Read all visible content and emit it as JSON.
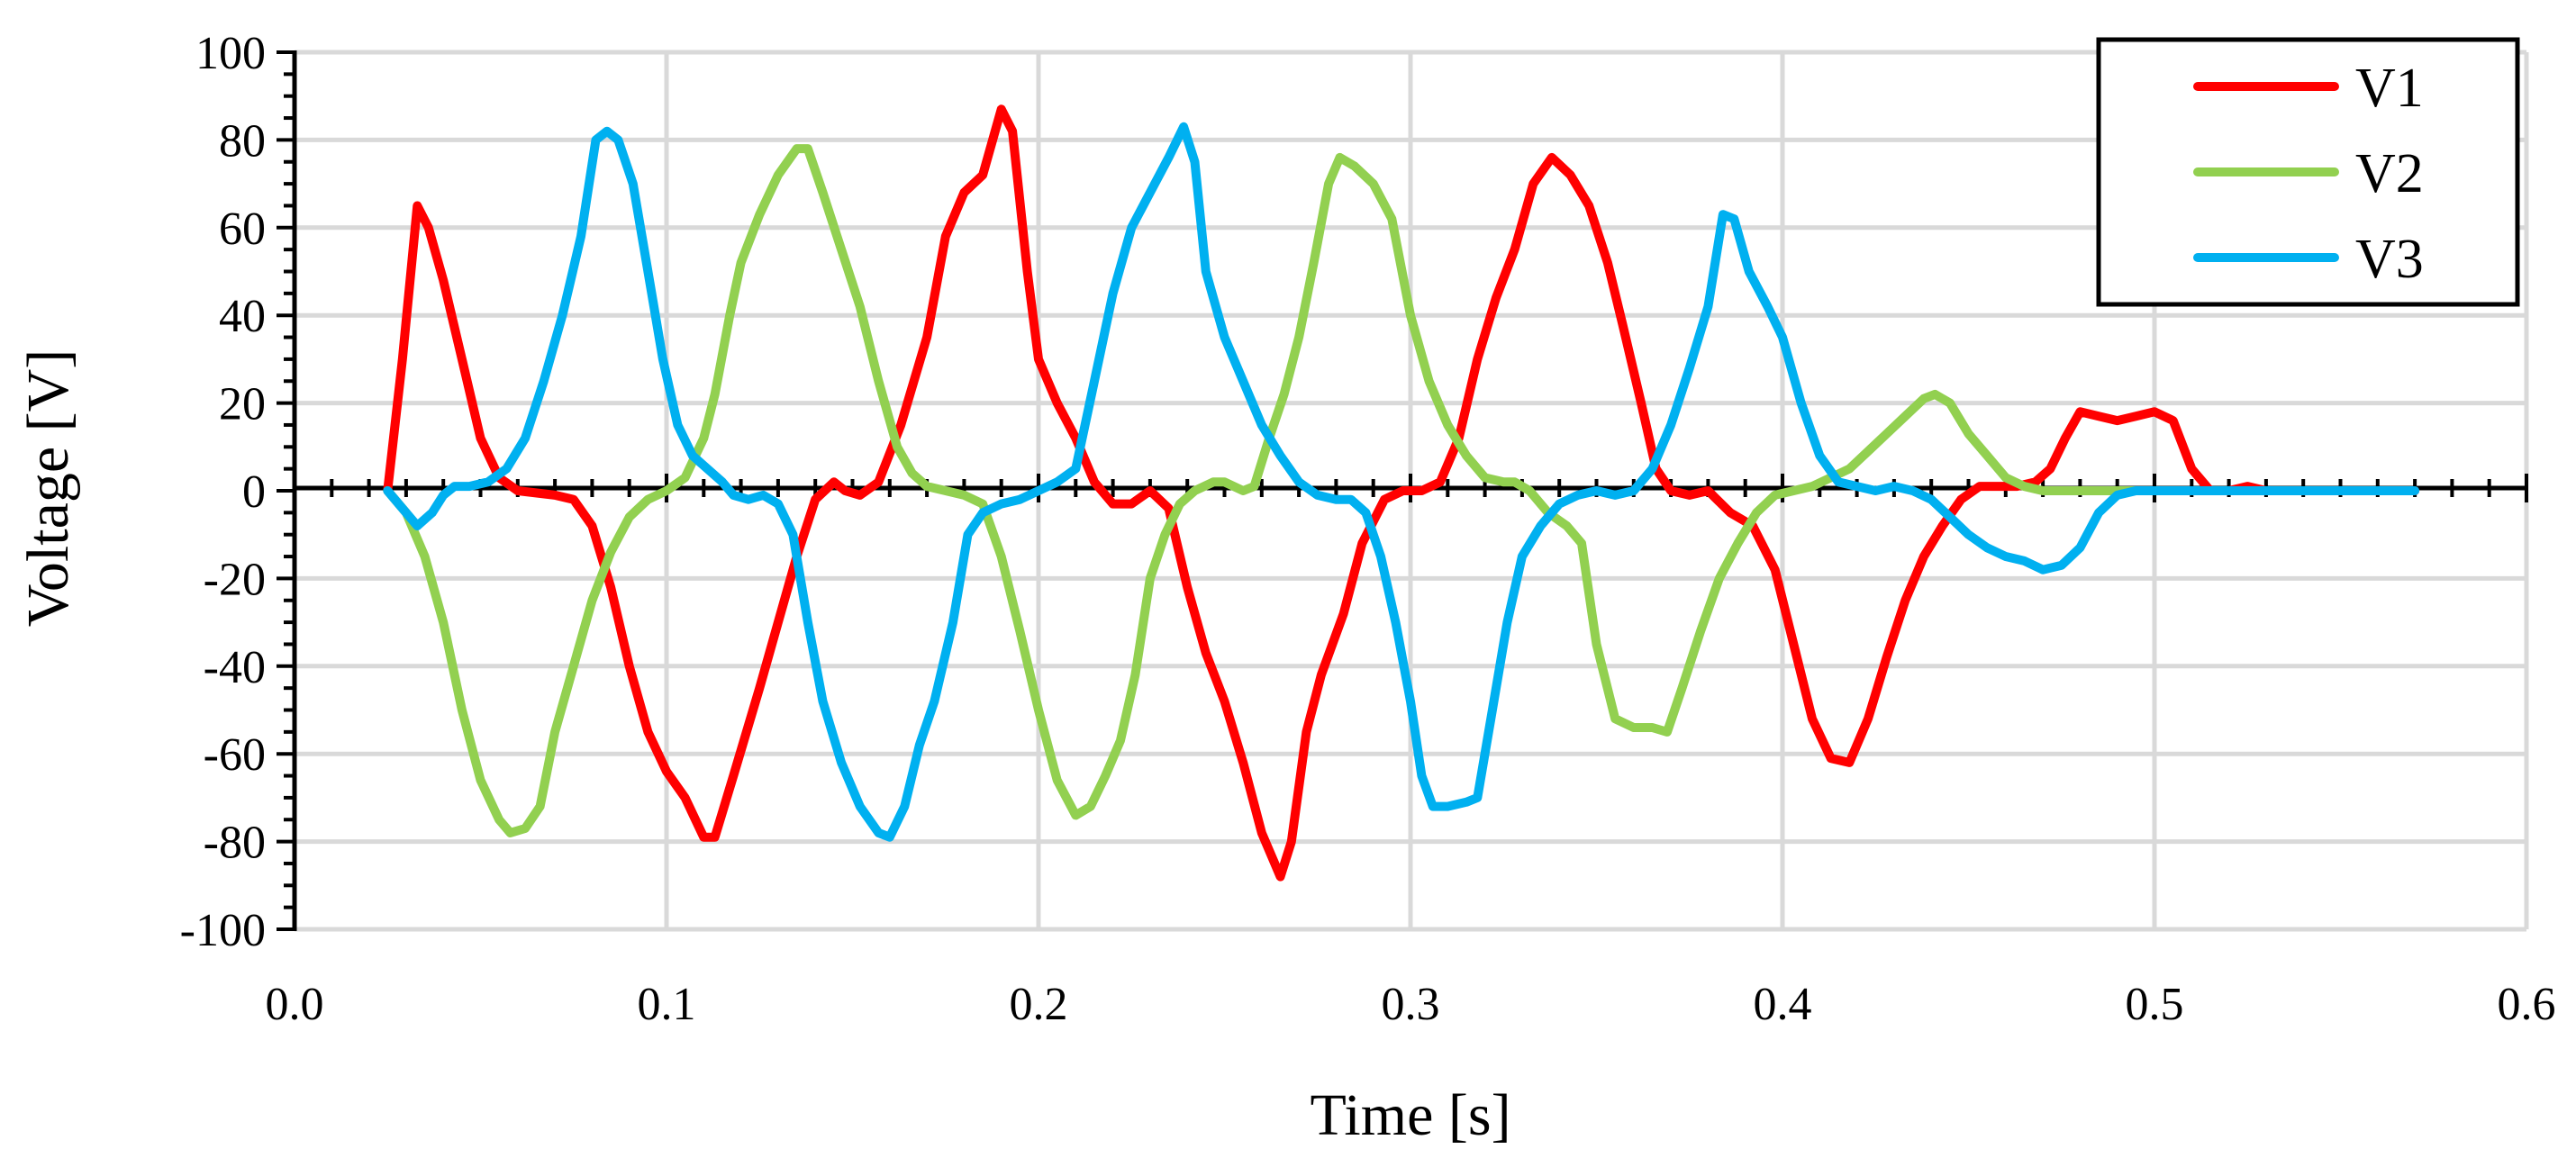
{
  "chart_data": {
    "type": "line",
    "title": "",
    "xlabel": "Time [s]",
    "ylabel": "Voltage [V]",
    "xlim": [
      0.0,
      0.6
    ],
    "ylim": [
      -100,
      100
    ],
    "x_ticks": [
      0.0,
      0.1,
      0.2,
      0.3,
      0.4,
      0.5,
      0.6
    ],
    "x_tick_labels": [
      "0.0",
      "0.1",
      "0.2",
      "0.3",
      "0.4",
      "0.5",
      "0.6"
    ],
    "y_ticks": [
      100,
      80,
      60,
      40,
      20,
      0,
      -20,
      -40,
      -60,
      -80,
      -100
    ],
    "y_tick_labels": [
      "100",
      "80",
      "60",
      "40",
      "20",
      "0",
      "-20",
      "-40",
      "-60",
      "-80",
      "-100"
    ],
    "grid": true,
    "legend_position": "top-right",
    "series": [
      {
        "name": "V1",
        "color": "#ff0000",
        "points": [
          [
            0.025,
            0
          ],
          [
            0.029,
            30
          ],
          [
            0.033,
            65
          ],
          [
            0.036,
            60
          ],
          [
            0.04,
            48
          ],
          [
            0.045,
            30
          ],
          [
            0.05,
            12
          ],
          [
            0.055,
            3
          ],
          [
            0.06,
            0
          ],
          [
            0.07,
            -1
          ],
          [
            0.075,
            -2
          ],
          [
            0.08,
            -8
          ],
          [
            0.085,
            -22
          ],
          [
            0.09,
            -40
          ],
          [
            0.095,
            -55
          ],
          [
            0.1,
            -64
          ],
          [
            0.105,
            -70
          ],
          [
            0.11,
            -79
          ],
          [
            0.113,
            -79
          ],
          [
            0.118,
            -65
          ],
          [
            0.125,
            -45
          ],
          [
            0.13,
            -30
          ],
          [
            0.135,
            -15
          ],
          [
            0.14,
            -2
          ],
          [
            0.145,
            2
          ],
          [
            0.148,
            0
          ],
          [
            0.152,
            -1
          ],
          [
            0.157,
            2
          ],
          [
            0.163,
            15
          ],
          [
            0.17,
            35
          ],
          [
            0.175,
            58
          ],
          [
            0.18,
            68
          ],
          [
            0.185,
            72
          ],
          [
            0.19,
            87
          ],
          [
            0.193,
            82
          ],
          [
            0.197,
            50
          ],
          [
            0.2,
            30
          ],
          [
            0.205,
            20
          ],
          [
            0.21,
            12
          ],
          [
            0.215,
            2
          ],
          [
            0.22,
            -3
          ],
          [
            0.225,
            -3
          ],
          [
            0.23,
            0
          ],
          [
            0.235,
            -4
          ],
          [
            0.24,
            -22
          ],
          [
            0.245,
            -37
          ],
          [
            0.25,
            -48
          ],
          [
            0.255,
            -62
          ],
          [
            0.26,
            -78
          ],
          [
            0.265,
            -88
          ],
          [
            0.268,
            -80
          ],
          [
            0.272,
            -55
          ],
          [
            0.276,
            -42
          ],
          [
            0.282,
            -28
          ],
          [
            0.287,
            -12
          ],
          [
            0.293,
            -2
          ],
          [
            0.298,
            0
          ],
          [
            0.303,
            0
          ],
          [
            0.308,
            2
          ],
          [
            0.313,
            12
          ],
          [
            0.318,
            30
          ],
          [
            0.323,
            44
          ],
          [
            0.328,
            55
          ],
          [
            0.333,
            70
          ],
          [
            0.338,
            76
          ],
          [
            0.343,
            72
          ],
          [
            0.348,
            65
          ],
          [
            0.353,
            52
          ],
          [
            0.357,
            38
          ],
          [
            0.362,
            20
          ],
          [
            0.366,
            5
          ],
          [
            0.37,
            0
          ],
          [
            0.375,
            -1
          ],
          [
            0.38,
            0
          ],
          [
            0.386,
            -5
          ],
          [
            0.392,
            -8
          ],
          [
            0.398,
            -18
          ],
          [
            0.403,
            -35
          ],
          [
            0.408,
            -52
          ],
          [
            0.413,
            -61
          ],
          [
            0.418,
            -62
          ],
          [
            0.423,
            -52
          ],
          [
            0.428,
            -38
          ],
          [
            0.433,
            -25
          ],
          [
            0.438,
            -15
          ],
          [
            0.443,
            -8
          ],
          [
            0.448,
            -2
          ],
          [
            0.453,
            1
          ],
          [
            0.458,
            1
          ],
          [
            0.463,
            1
          ],
          [
            0.468,
            2
          ],
          [
            0.472,
            5
          ],
          [
            0.476,
            12
          ],
          [
            0.48,
            18
          ],
          [
            0.485,
            17
          ],
          [
            0.49,
            16
          ],
          [
            0.495,
            17
          ],
          [
            0.5,
            18
          ],
          [
            0.505,
            16
          ],
          [
            0.51,
            5
          ],
          [
            0.515,
            0
          ],
          [
            0.52,
            0
          ],
          [
            0.525,
            1
          ],
          [
            0.53,
            0
          ],
          [
            0.57,
            0
          ]
        ]
      },
      {
        "name": "V2",
        "color": "#92d050",
        "points": [
          [
            0.025,
            0
          ],
          [
            0.03,
            -5
          ],
          [
            0.035,
            -15
          ],
          [
            0.04,
            -30
          ],
          [
            0.045,
            -50
          ],
          [
            0.05,
            -66
          ],
          [
            0.055,
            -75
          ],
          [
            0.058,
            -78
          ],
          [
            0.062,
            -77
          ],
          [
            0.066,
            -72
          ],
          [
            0.07,
            -55
          ],
          [
            0.075,
            -40
          ],
          [
            0.08,
            -25
          ],
          [
            0.085,
            -14
          ],
          [
            0.09,
            -6
          ],
          [
            0.095,
            -2
          ],
          [
            0.1,
            0
          ],
          [
            0.105,
            3
          ],
          [
            0.11,
            12
          ],
          [
            0.113,
            22
          ],
          [
            0.117,
            40
          ],
          [
            0.12,
            52
          ],
          [
            0.125,
            63
          ],
          [
            0.13,
            72
          ],
          [
            0.135,
            78
          ],
          [
            0.138,
            78
          ],
          [
            0.142,
            68
          ],
          [
            0.147,
            55
          ],
          [
            0.152,
            42
          ],
          [
            0.157,
            25
          ],
          [
            0.162,
            10
          ],
          [
            0.166,
            4
          ],
          [
            0.17,
            1
          ],
          [
            0.175,
            0
          ],
          [
            0.18,
            -1
          ],
          [
            0.185,
            -3
          ],
          [
            0.19,
            -15
          ],
          [
            0.195,
            -32
          ],
          [
            0.2,
            -50
          ],
          [
            0.205,
            -66
          ],
          [
            0.21,
            -74
          ],
          [
            0.214,
            -72
          ],
          [
            0.218,
            -65
          ],
          [
            0.222,
            -57
          ],
          [
            0.226,
            -42
          ],
          [
            0.23,
            -20
          ],
          [
            0.234,
            -10
          ],
          [
            0.238,
            -3
          ],
          [
            0.242,
            0
          ],
          [
            0.247,
            2
          ],
          [
            0.25,
            2
          ],
          [
            0.255,
            0
          ],
          [
            0.258,
            1
          ],
          [
            0.262,
            12
          ],
          [
            0.266,
            22
          ],
          [
            0.27,
            35
          ],
          [
            0.274,
            52
          ],
          [
            0.278,
            70
          ],
          [
            0.281,
            76
          ],
          [
            0.285,
            74
          ],
          [
            0.29,
            70
          ],
          [
            0.295,
            62
          ],
          [
            0.3,
            40
          ],
          [
            0.305,
            25
          ],
          [
            0.31,
            15
          ],
          [
            0.315,
            8
          ],
          [
            0.32,
            3
          ],
          [
            0.325,
            2
          ],
          [
            0.328,
            2
          ],
          [
            0.332,
            0
          ],
          [
            0.337,
            -5
          ],
          [
            0.342,
            -8
          ],
          [
            0.346,
            -12
          ],
          [
            0.35,
            -35
          ],
          [
            0.355,
            -52
          ],
          [
            0.36,
            -54
          ],
          [
            0.365,
            -54
          ],
          [
            0.369,
            -55
          ],
          [
            0.373,
            -45
          ],
          [
            0.378,
            -32
          ],
          [
            0.383,
            -20
          ],
          [
            0.388,
            -12
          ],
          [
            0.393,
            -5
          ],
          [
            0.398,
            -1
          ],
          [
            0.403,
            0
          ],
          [
            0.408,
            1
          ],
          [
            0.413,
            3
          ],
          [
            0.418,
            5
          ],
          [
            0.423,
            9
          ],
          [
            0.428,
            13
          ],
          [
            0.433,
            17
          ],
          [
            0.438,
            21
          ],
          [
            0.441,
            22
          ],
          [
            0.445,
            20
          ],
          [
            0.45,
            13
          ],
          [
            0.455,
            8
          ],
          [
            0.46,
            3
          ],
          [
            0.465,
            1
          ],
          [
            0.47,
            0
          ],
          [
            0.5,
            0
          ]
        ]
      },
      {
        "name": "V3",
        "color": "#00b0f0",
        "points": [
          [
            0.025,
            0
          ],
          [
            0.028,
            -3
          ],
          [
            0.033,
            -8
          ],
          [
            0.037,
            -5
          ],
          [
            0.04,
            -1
          ],
          [
            0.043,
            1
          ],
          [
            0.047,
            1
          ],
          [
            0.052,
            2
          ],
          [
            0.057,
            5
          ],
          [
            0.062,
            12
          ],
          [
            0.067,
            25
          ],
          [
            0.072,
            40
          ],
          [
            0.077,
            58
          ],
          [
            0.081,
            80
          ],
          [
            0.084,
            82
          ],
          [
            0.087,
            80
          ],
          [
            0.091,
            70
          ],
          [
            0.095,
            50
          ],
          [
            0.099,
            30
          ],
          [
            0.103,
            15
          ],
          [
            0.107,
            8
          ],
          [
            0.111,
            5
          ],
          [
            0.115,
            2
          ],
          [
            0.118,
            -1
          ],
          [
            0.122,
            -2
          ],
          [
            0.126,
            -1
          ],
          [
            0.13,
            -3
          ],
          [
            0.134,
            -10
          ],
          [
            0.138,
            -30
          ],
          [
            0.142,
            -48
          ],
          [
            0.147,
            -62
          ],
          [
            0.152,
            -72
          ],
          [
            0.157,
            -78
          ],
          [
            0.16,
            -79
          ],
          [
            0.164,
            -72
          ],
          [
            0.168,
            -58
          ],
          [
            0.172,
            -48
          ],
          [
            0.177,
            -30
          ],
          [
            0.181,
            -10
          ],
          [
            0.185,
            -5
          ],
          [
            0.19,
            -3
          ],
          [
            0.195,
            -2
          ],
          [
            0.2,
            0
          ],
          [
            0.205,
            2
          ],
          [
            0.21,
            5
          ],
          [
            0.215,
            25
          ],
          [
            0.22,
            45
          ],
          [
            0.225,
            60
          ],
          [
            0.23,
            68
          ],
          [
            0.235,
            76
          ],
          [
            0.239,
            83
          ],
          [
            0.242,
            75
          ],
          [
            0.245,
            50
          ],
          [
            0.25,
            35
          ],
          [
            0.255,
            25
          ],
          [
            0.26,
            15
          ],
          [
            0.265,
            8
          ],
          [
            0.27,
            2
          ],
          [
            0.275,
            -1
          ],
          [
            0.28,
            -2
          ],
          [
            0.284,
            -2
          ],
          [
            0.288,
            -5
          ],
          [
            0.292,
            -15
          ],
          [
            0.296,
            -30
          ],
          [
            0.3,
            -48
          ],
          [
            0.303,
            -65
          ],
          [
            0.306,
            -72
          ],
          [
            0.31,
            -72
          ],
          [
            0.315,
            -71
          ],
          [
            0.318,
            -70
          ],
          [
            0.322,
            -50
          ],
          [
            0.326,
            -30
          ],
          [
            0.33,
            -15
          ],
          [
            0.335,
            -8
          ],
          [
            0.34,
            -3
          ],
          [
            0.345,
            -1
          ],
          [
            0.35,
            0
          ],
          [
            0.355,
            -1
          ],
          [
            0.36,
            0
          ],
          [
            0.365,
            5
          ],
          [
            0.37,
            15
          ],
          [
            0.375,
            28
          ],
          [
            0.38,
            42
          ],
          [
            0.384,
            63
          ],
          [
            0.387,
            62
          ],
          [
            0.391,
            50
          ],
          [
            0.396,
            42
          ],
          [
            0.4,
            35
          ],
          [
            0.405,
            20
          ],
          [
            0.41,
            8
          ],
          [
            0.415,
            2
          ],
          [
            0.42,
            1
          ],
          [
            0.425,
            0
          ],
          [
            0.43,
            1
          ],
          [
            0.435,
            0
          ],
          [
            0.44,
            -2
          ],
          [
            0.445,
            -6
          ],
          [
            0.45,
            -10
          ],
          [
            0.455,
            -13
          ],
          [
            0.46,
            -15
          ],
          [
            0.465,
            -16
          ],
          [
            0.47,
            -18
          ],
          [
            0.475,
            -17
          ],
          [
            0.48,
            -13
          ],
          [
            0.485,
            -5
          ],
          [
            0.49,
            -1
          ],
          [
            0.495,
            0
          ],
          [
            0.5,
            0
          ],
          [
            0.51,
            0
          ],
          [
            0.52,
            0
          ],
          [
            0.57,
            0
          ]
        ]
      }
    ]
  }
}
